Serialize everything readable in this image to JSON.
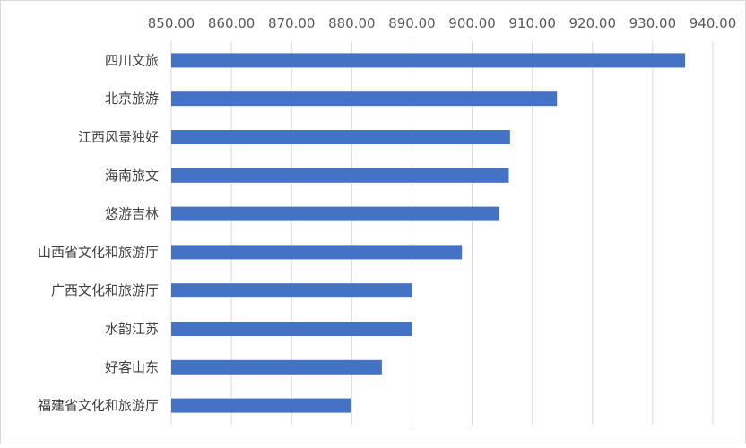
{
  "chart_data": {
    "type": "bar",
    "orientation": "horizontal",
    "title": "",
    "xlabel": "",
    "ylabel": "",
    "xlim": [
      850,
      940
    ],
    "x_ticks": [
      "850.00",
      "860.00",
      "870.00",
      "880.00",
      "890.00",
      "900.00",
      "910.00",
      "920.00",
      "930.00",
      "940.00"
    ],
    "x_axis_position": "top",
    "grid": true,
    "legend": "none",
    "bar_color": "#4472c4",
    "categories": [
      "四川文旅",
      "北京旅游",
      "江西风景独好",
      "海南旅文",
      "悠游吉林",
      "山西省文化和旅游厅",
      "广西文化和旅游厅",
      "水韵江苏",
      "好客山东",
      "福建省文化和旅游厅"
    ],
    "values": [
      935.4,
      914.1,
      906.3,
      906.1,
      904.5,
      898.3,
      890.0,
      890.0,
      885.0,
      879.8
    ]
  }
}
